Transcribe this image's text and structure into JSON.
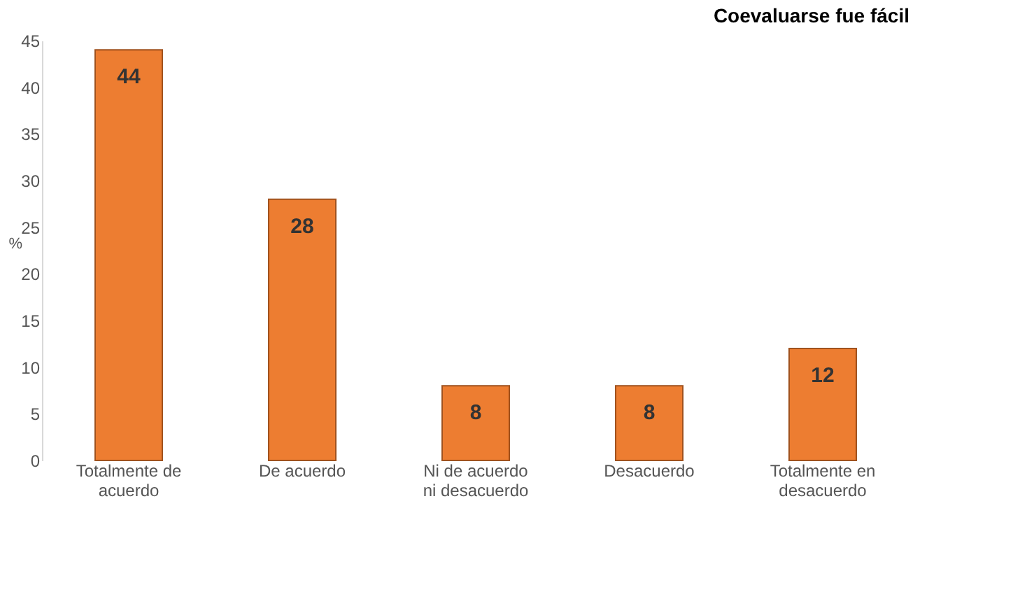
{
  "chart_data": {
    "type": "bar",
    "title": "Coevaluarse fue fácil",
    "ylabel": "%",
    "categories": [
      "Totalmente de acuerdo",
      "De acuerdo",
      "Ni de acuerdo ni desacuerdo",
      "Desacuerdo",
      "Totalmente en desacuerdo"
    ],
    "values": [
      44,
      28,
      8,
      8,
      12
    ],
    "color": "#ed7d31",
    "ylim": [
      0,
      45
    ],
    "yticks": [
      0,
      5,
      10,
      15,
      20,
      25,
      30,
      35,
      40,
      45
    ],
    "grid": false,
    "data_labels": true
  }
}
